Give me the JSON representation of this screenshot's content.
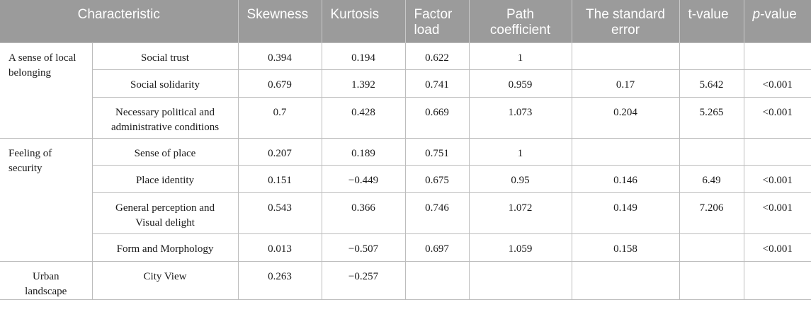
{
  "headers": {
    "characteristic": "Characteristic",
    "skewness": "Skewness",
    "kurtosis": "Kurtosis",
    "factor_load_1": "Factor",
    "factor_load_2": "load",
    "path_coefficient_1": "Path",
    "path_coefficient_2": "coefficient",
    "standard_error_1": "The standard",
    "standard_error_2": "error",
    "t_value": "t-value",
    "p_value_italic": "p",
    "p_value_rest": "-value"
  },
  "groups": [
    {
      "label_line1": "A sense of local",
      "label_line2": "belonging"
    },
    {
      "label_line1": "Feeling of",
      "label_line2": "security"
    },
    {
      "label_line1": "Urban",
      "label_line2": "landscape"
    }
  ],
  "rows": [
    {
      "item_line1": "Social trust",
      "item_line2": "",
      "skewness": "0.394",
      "kurtosis": "0.194",
      "factor_load": "0.622",
      "path_coefficient": "1",
      "standard_error": "",
      "t_value": "",
      "p_value": ""
    },
    {
      "item_line1": "Social solidarity",
      "item_line2": "",
      "skewness": "0.679",
      "kurtosis": "1.392",
      "factor_load": "0.741",
      "path_coefficient": "0.959",
      "standard_error": "0.17",
      "t_value": "5.642",
      "p_value": "<0.001"
    },
    {
      "item_line1": "Necessary political and",
      "item_line2": "administrative conditions",
      "skewness": "0.7",
      "kurtosis": "0.428",
      "factor_load": "0.669",
      "path_coefficient": "1.073",
      "standard_error": "0.204",
      "t_value": "5.265",
      "p_value": "<0.001"
    },
    {
      "item_line1": "Sense of place",
      "item_line2": "",
      "skewness": "0.207",
      "kurtosis": "0.189",
      "factor_load": "0.751",
      "path_coefficient": "1",
      "standard_error": "",
      "t_value": "",
      "p_value": ""
    },
    {
      "item_line1": "Place identity",
      "item_line2": "",
      "skewness": "0.151",
      "kurtosis": "−0.449",
      "factor_load": "0.675",
      "path_coefficient": "0.95",
      "standard_error": "0.146",
      "t_value": "6.49",
      "p_value": "<0.001"
    },
    {
      "item_line1": "General perception and",
      "item_line2": "Visual delight",
      "skewness": "0.543",
      "kurtosis": "0.366",
      "factor_load": "0.746",
      "path_coefficient": "1.072",
      "standard_error": "0.149",
      "t_value": "7.206",
      "p_value": "<0.001"
    },
    {
      "item_line1": "Form and Morphology",
      "item_line2": "",
      "skewness": "0.013",
      "kurtosis": "−0.507",
      "factor_load": "0.697",
      "path_coefficient": "1.059",
      "standard_error": "0.158",
      "t_value": "",
      "p_value": "<0.001"
    },
    {
      "item_line1": "City View",
      "item_line2": "",
      "skewness": "0.263",
      "kurtosis": "−0.257",
      "factor_load": "",
      "path_coefficient": "",
      "standard_error": "",
      "t_value": "",
      "p_value": ""
    }
  ],
  "colors": {
    "header_background": "#9b9b9b",
    "header_text": "#ffffff",
    "grid_line": "#bdbdbd"
  }
}
